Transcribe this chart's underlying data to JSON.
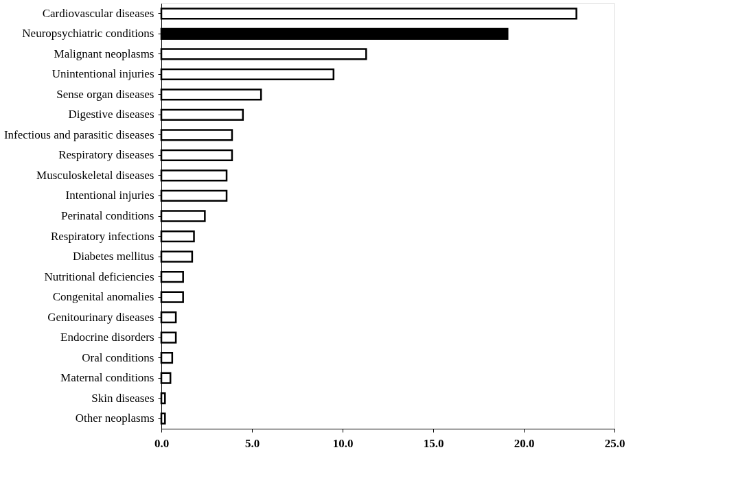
{
  "chart_data": {
    "type": "bar",
    "orientation": "horizontal",
    "categories": [
      "Cardiovascular diseases",
      "Neuropsychiatric conditions",
      "Malignant neoplasms",
      "Unintentional injuries",
      "Sense organ diseases",
      "Digestive diseases",
      "Infectious and parasitic diseases",
      "Respiratory diseases",
      "Musculoskeletal diseases",
      "Intentional injuries",
      "Perinatal conditions",
      "Respiratory infections",
      "Diabetes mellitus",
      "Nutritional deficiencies",
      "Congenital anomalies",
      "Genitourinary diseases",
      "Endocrine disorders",
      "Oral conditions",
      "Maternal conditions",
      "Skin diseases",
      "Other neoplasms"
    ],
    "values": [
      22.9,
      19.1,
      11.3,
      9.5,
      5.5,
      4.5,
      3.9,
      3.9,
      3.6,
      3.6,
      2.4,
      1.8,
      1.7,
      1.2,
      1.2,
      0.8,
      0.8,
      0.6,
      0.5,
      0.2,
      0.2
    ],
    "colors": [
      "#ffffff",
      "#000000",
      "#ffffff",
      "#ffffff",
      "#ffffff",
      "#ffffff",
      "#ffffff",
      "#ffffff",
      "#ffffff",
      "#ffffff",
      "#ffffff",
      "#ffffff",
      "#ffffff",
      "#ffffff",
      "#ffffff",
      "#ffffff",
      "#ffffff",
      "#ffffff",
      "#ffffff",
      "#ffffff",
      "#ffffff"
    ],
    "xlim": [
      0,
      25
    ],
    "xticks": [
      {
        "value": 0,
        "label": "0.0"
      },
      {
        "value": 5,
        "label": "5.0"
      },
      {
        "value": 10,
        "label": "10.0"
      },
      {
        "value": 15,
        "label": "15.0"
      },
      {
        "value": 20,
        "label": "20.0"
      },
      {
        "value": 25,
        "label": "25.0"
      }
    ],
    "grid": false
  }
}
